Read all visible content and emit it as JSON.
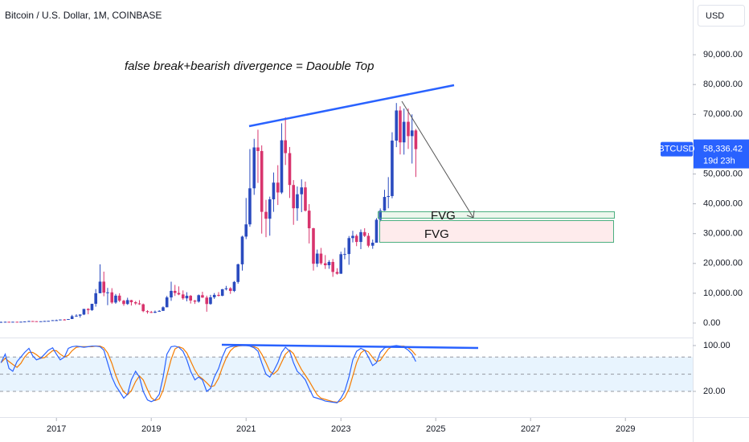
{
  "header": {
    "symbol_title": "Bitcoin / U.S. Dollar, 1M, COINBASE",
    "currency": "USD"
  },
  "chart_data": [
    {
      "type": "candlestick",
      "annotation": "false break+bearish divergence = Daouble Top",
      "fvg_labels": [
        "FVG",
        "FVG"
      ],
      "up_color": "#2a4bbf",
      "down_color": "#d8346d",
      "x": [
        2015.83,
        2015.92,
        2016.0,
        2016.08,
        2016.17,
        2016.25,
        2016.33,
        2016.42,
        2016.5,
        2016.58,
        2016.67,
        2016.75,
        2016.83,
        2016.92,
        2017.0,
        2017.08,
        2017.17,
        2017.25,
        2017.33,
        2017.42,
        2017.5,
        2017.58,
        2017.67,
        2017.75,
        2017.83,
        2017.92,
        2018.0,
        2018.08,
        2018.17,
        2018.25,
        2018.33,
        2018.42,
        2018.5,
        2018.58,
        2018.67,
        2018.75,
        2018.83,
        2018.92,
        2019.0,
        2019.08,
        2019.17,
        2019.25,
        2019.33,
        2019.42,
        2019.5,
        2019.58,
        2019.67,
        2019.75,
        2019.83,
        2019.92,
        2020.0,
        2020.08,
        2020.17,
        2020.25,
        2020.33,
        2020.42,
        2020.5,
        2020.58,
        2020.67,
        2020.75,
        2020.83,
        2020.92,
        2021.0,
        2021.08,
        2021.17,
        2021.25,
        2021.33,
        2021.42,
        2021.5,
        2021.58,
        2021.67,
        2021.75,
        2021.83,
        2021.92,
        2022.0,
        2022.08,
        2022.17,
        2022.25,
        2022.33,
        2022.42,
        2022.5,
        2022.58,
        2022.67,
        2022.75,
        2022.83,
        2022.92,
        2023.0,
        2023.08,
        2023.17,
        2023.25,
        2023.33,
        2023.42,
        2023.5,
        2023.58,
        2023.67,
        2023.75,
        2023.83,
        2023.92,
        2024.0,
        2024.08,
        2024.17,
        2024.25,
        2024.33,
        2024.42,
        2024.5,
        2024.58
      ],
      "open": [
        314,
        377,
        430,
        368,
        437,
        416,
        448,
        531,
        673,
        624,
        575,
        609,
        698,
        742,
        964,
        970,
        1190,
        1080,
        1350,
        2300,
        2480,
        2870,
        4740,
        4340,
        6460,
        10000,
        13900,
        10200,
        10300,
        6900,
        9200,
        7500,
        6400,
        7700,
        7000,
        6600,
        6300,
        4000,
        3700,
        3450,
        3800,
        4100,
        5300,
        8600,
        10800,
        10100,
        9600,
        8300,
        9150,
        7550,
        7200,
        9350,
        8550,
        6400,
        8650,
        9450,
        9150,
        11350,
        11650,
        10780,
        13800,
        19700,
        29000,
        33100,
        45200,
        58900,
        57700,
        37300,
        35000,
        41500,
        47100,
        43800,
        61300,
        57000,
        46300,
        38500,
        43200,
        45500,
        37700,
        31800,
        19900,
        23300,
        20050,
        19400,
        20500,
        17150,
        16550,
        23100,
        23150,
        28500,
        29250,
        27200,
        30500,
        29250,
        25950,
        26950,
        34650,
        37700,
        42300,
        42600,
        61200,
        71300,
        60600,
        67500,
        62700,
        64600
      ],
      "high": [
        500,
        470,
        465,
        440,
        440,
        470,
        555,
        780,
        705,
        620,
        630,
        740,
        780,
        980,
        1160,
        1200,
        1350,
        1350,
        2760,
        2980,
        2920,
        4760,
        5000,
        6470,
        11400,
        19700,
        17250,
        11800,
        11700,
        9760,
        10000,
        7780,
        8500,
        7780,
        7400,
        7680,
        6550,
        4310,
        4070,
        4200,
        4300,
        5600,
        9100,
        13880,
        12800,
        12300,
        10950,
        10350,
        9400,
        7750,
        9580,
        10500,
        9200,
        9460,
        10070,
        10390,
        11450,
        12470,
        12050,
        14100,
        19950,
        29300,
        41950,
        58350,
        61780,
        64850,
        59600,
        41330,
        42400,
        50500,
        52950,
        67000,
        69000,
        59050,
        47950,
        45800,
        48200,
        47450,
        39900,
        31950,
        24650,
        25200,
        22800,
        21100,
        21500,
        18400,
        23950,
        25250,
        29200,
        30950,
        29800,
        31400,
        31800,
        30200,
        28000,
        35200,
        38450,
        44700,
        48950,
        64000,
        73800,
        72700,
        71950,
        71950,
        70000,
        65100
      ],
      "low": [
        300,
        350,
        350,
        365,
        370,
        410,
        440,
        530,
        470,
        530,
        590,
        605,
        700,
        740,
        750,
        910,
        890,
        1060,
        1340,
        2080,
        1830,
        2670,
        2950,
        4100,
        5500,
        10700,
        9000,
        6000,
        6430,
        6450,
        7050,
        5790,
        6100,
        5880,
        6100,
        6100,
        3650,
        3150,
        3390,
        3380,
        3900,
        4080,
        5330,
        7450,
        9100,
        9350,
        7800,
        7300,
        6550,
        6430,
        6850,
        8450,
        3800,
        6150,
        8100,
        8900,
        9000,
        10950,
        9800,
        10400,
        13200,
        17600,
        28150,
        32300,
        43000,
        47000,
        30000,
        28800,
        29300,
        37300,
        39600,
        43300,
        53000,
        41950,
        32950,
        34300,
        37200,
        37400,
        26700,
        17600,
        18800,
        19550,
        18150,
        18200,
        15500,
        16250,
        16500,
        21400,
        19550,
        27050,
        25800,
        24800,
        28850,
        25400,
        24900,
        26950,
        34100,
        37600,
        38500,
        41850,
        59000,
        56550,
        56500,
        58400,
        53500,
        49000
      ],
      "close": [
        377,
        430,
        368,
        437,
        416,
        448,
        531,
        673,
        624,
        575,
        609,
        698,
        742,
        964,
        970,
        1190,
        1080,
        1350,
        2300,
        2480,
        2870,
        4740,
        4340,
        6460,
        10000,
        13900,
        10200,
        10300,
        6900,
        9200,
        7500,
        6400,
        7700,
        7000,
        6600,
        6300,
        4000,
        3700,
        3450,
        3800,
        4100,
        5300,
        8600,
        10800,
        10100,
        9600,
        8300,
        9150,
        7550,
        7200,
        9350,
        8550,
        6400,
        8650,
        9450,
        9150,
        11350,
        11650,
        10780,
        13800,
        19700,
        29000,
        33100,
        45200,
        58900,
        57700,
        37300,
        35000,
        41500,
        47100,
        43800,
        61300,
        57000,
        46300,
        38500,
        43200,
        45500,
        37700,
        31800,
        19900,
        23300,
        20050,
        19400,
        20500,
        17150,
        16550,
        23100,
        23150,
        28500,
        29250,
        27200,
        30500,
        29250,
        25950,
        26950,
        34650,
        37700,
        42300,
        42600,
        61200,
        71300,
        60600,
        67500,
        62700,
        64600,
        58336.42
      ],
      "xlim": [
        2015.81,
        2030.42
      ],
      "xticks": [
        2017,
        2019,
        2021,
        2023,
        2025,
        2027,
        2029
      ],
      "ylim": [
        -4850,
        108350
      ],
      "yticks": [
        {
          "value": 0,
          "label": "0.00"
        },
        {
          "value": 10000,
          "label": "10,000.00"
        },
        {
          "value": 20000,
          "label": "20,000.00"
        },
        {
          "value": 30000,
          "label": "30,000.00"
        },
        {
          "value": 40000,
          "label": "40,000.00"
        },
        {
          "value": 50000,
          "label": "50,000.00"
        },
        {
          "value": 60000,
          "label": "60,000.00"
        },
        {
          "value": 70000,
          "label": "70,000.00"
        },
        {
          "value": 80000,
          "label": "80,000.00"
        },
        {
          "value": 90000,
          "label": "90,000.00"
        }
      ],
      "last_price": {
        "value": 58336.42,
        "label": "58,336.42"
      },
      "last_price_symbol": "BTCUSD",
      "last_price_countdown": "19d 23h",
      "last_price_color": "#2962ff"
    },
    {
      "type": "line",
      "series": [
        {
          "color": "#2962ff",
          "values": [
            70,
            85,
            60,
            55,
            72,
            80,
            88,
            95,
            82,
            75,
            78,
            85,
            92,
            96,
            85,
            75,
            80,
            95,
            98,
            99,
            98,
            97,
            98,
            99,
            99,
            98,
            92,
            70,
            45,
            30,
            20,
            8,
            15,
            40,
            55,
            45,
            20,
            5,
            2,
            5,
            15,
            45,
            85,
            98,
            99,
            97,
            90,
            75,
            55,
            40,
            45,
            40,
            20,
            25,
            45,
            60,
            80,
            95,
            98,
            99,
            100,
            100,
            100,
            99,
            96,
            90,
            70,
            50,
            45,
            55,
            70,
            88,
            97,
            90,
            70,
            55,
            48,
            40,
            25,
            10,
            8,
            6,
            3,
            2,
            1,
            0,
            8,
            20,
            45,
            75,
            90,
            95,
            92,
            80,
            65,
            70,
            88,
            96,
            98,
            99,
            100,
            99,
            97,
            92,
            85,
            72
          ]
        },
        {
          "color": "#f57c00",
          "values": [
            70,
            78,
            72,
            67,
            62,
            69,
            80,
            88,
            88,
            84,
            78,
            79,
            85,
            91,
            91,
            85,
            80,
            83,
            91,
            97,
            98,
            98,
            98,
            98,
            99,
            99,
            96,
            87,
            69,
            48,
            32,
            19,
            14,
            21,
            37,
            47,
            40,
            23,
            9,
            4,
            7,
            22,
            48,
            76,
            94,
            98,
            95,
            87,
            73,
            57,
            47,
            42,
            35,
            28,
            30,
            43,
            62,
            78,
            91,
            97,
            99,
            100,
            100,
            100,
            98,
            95,
            85,
            70,
            55,
            50,
            57,
            71,
            85,
            92,
            86,
            72,
            58,
            48,
            38,
            25,
            14,
            8,
            6,
            4,
            2,
            1,
            3,
            9,
            24,
            47,
            70,
            87,
            92,
            89,
            79,
            72,
            74,
            85,
            94,
            98,
            99,
            99,
            99,
            96,
            91,
            83
          ]
        }
      ],
      "ylim": [
        -19.3,
        112.6
      ],
      "yticks": [
        {
          "value": 100,
          "label": "100.00"
        },
        {
          "value": 20,
          "label": "20.00"
        }
      ],
      "bands": [
        80,
        50,
        20
      ],
      "band_color": "#2196f3"
    }
  ]
}
